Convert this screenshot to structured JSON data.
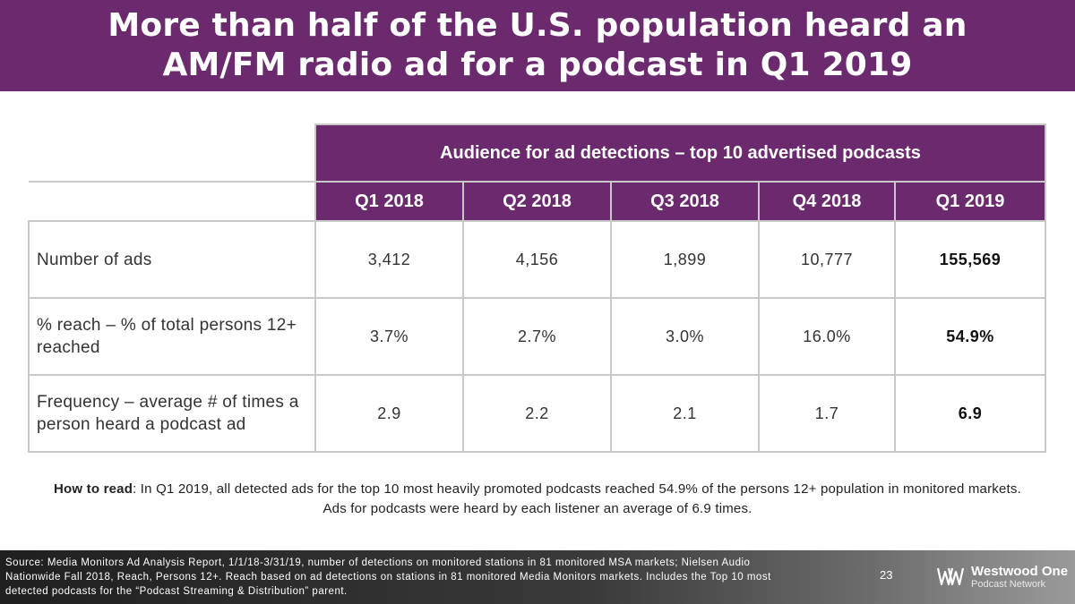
{
  "title": {
    "line1": "More than half of the U.S. population heard an",
    "line2": "AM/FM radio ad for a podcast in Q1 2019"
  },
  "table": {
    "group_header": "Audience for ad detections – top 10 advertised podcasts",
    "quarters": [
      "Q1 2018",
      "Q2 2018",
      "Q3 2018",
      "Q4 2018",
      "Q1 2019"
    ],
    "rows": [
      {
        "label": "Number of ads",
        "values": [
          "3,412",
          "4,156",
          "1,899",
          "10,777",
          "155,569"
        ]
      },
      {
        "label": "% reach – % of total persons 12+ reached",
        "values": [
          "3.7%",
          "2.7%",
          "3.0%",
          "16.0%",
          "54.9%"
        ]
      },
      {
        "label": "Frequency – average # of times a person heard a podcast ad",
        "values": [
          "2.9",
          "2.2",
          "2.1",
          "1.7",
          "6.9"
        ]
      }
    ]
  },
  "how_to_read": {
    "label": "How to read",
    "text": ": In Q1 2019, all detected ads for the top 10 most heavily promoted podcasts reached 54.9% of the persons 12+ population in monitored markets. Ads for podcasts were heard by each listener an average of 6.9 times."
  },
  "footer": {
    "source": "Source: Media Monitors Ad Analysis Report, 1/1/18-3/31/19, number of detections on monitored stations in 81 monitored MSA markets; Nielsen Audio Nationwide Fall 2018, Reach, Persons 12+. Reach based on ad detections on stations in 81 monitored Media Monitors markets. Includes the Top 10 most detected podcasts for the “Podcast Streaming & Distribution” parent.",
    "page_number": "23",
    "logo_name": "Westwood One",
    "logo_sub": "Podcast Network"
  },
  "colors": {
    "brand_purple": "#6b2a6e"
  }
}
